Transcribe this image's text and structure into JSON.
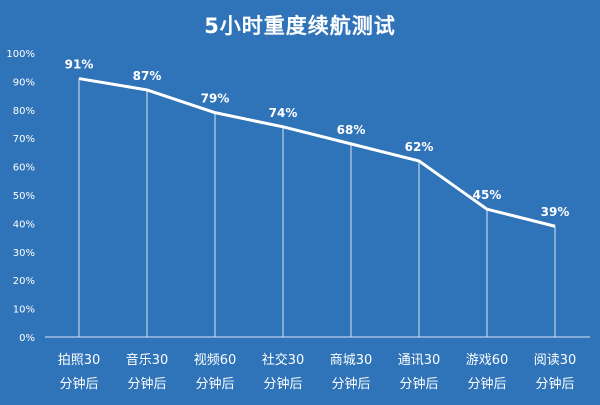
{
  "title": "5小时重度续航测试",
  "chart_data": {
    "type": "line",
    "title": "5小时重度续航测试",
    "categories": [
      [
        "拍照30",
        "分钟后"
      ],
      [
        "音乐30",
        "分钟后"
      ],
      [
        "视频60",
        "分钟后"
      ],
      [
        "社交30",
        "分钟后"
      ],
      [
        "商城30",
        "分钟后"
      ],
      [
        "通讯30",
        "分钟后"
      ],
      [
        "游戏60",
        "分钟后"
      ],
      [
        "阅读30",
        "分钟后"
      ]
    ],
    "values": [
      91,
      87,
      79,
      74,
      68,
      62,
      45,
      39
    ],
    "data_labels": [
      "91%",
      "87%",
      "79%",
      "74%",
      "68%",
      "62%",
      "45%",
      "39%"
    ],
    "ylim": [
      0,
      100
    ],
    "yticks": [
      0,
      10,
      20,
      30,
      40,
      50,
      60,
      70,
      80,
      90,
      100
    ],
    "ytick_labels": [
      "0%",
      "10%",
      "20%",
      "30%",
      "40%",
      "50%",
      "60%",
      "70%",
      "80%",
      "90%",
      "100%"
    ],
    "grid": false,
    "colors": {
      "background": "#2f73b8",
      "line": "#ffffff",
      "drop_lines": "#d9e6f3"
    }
  }
}
